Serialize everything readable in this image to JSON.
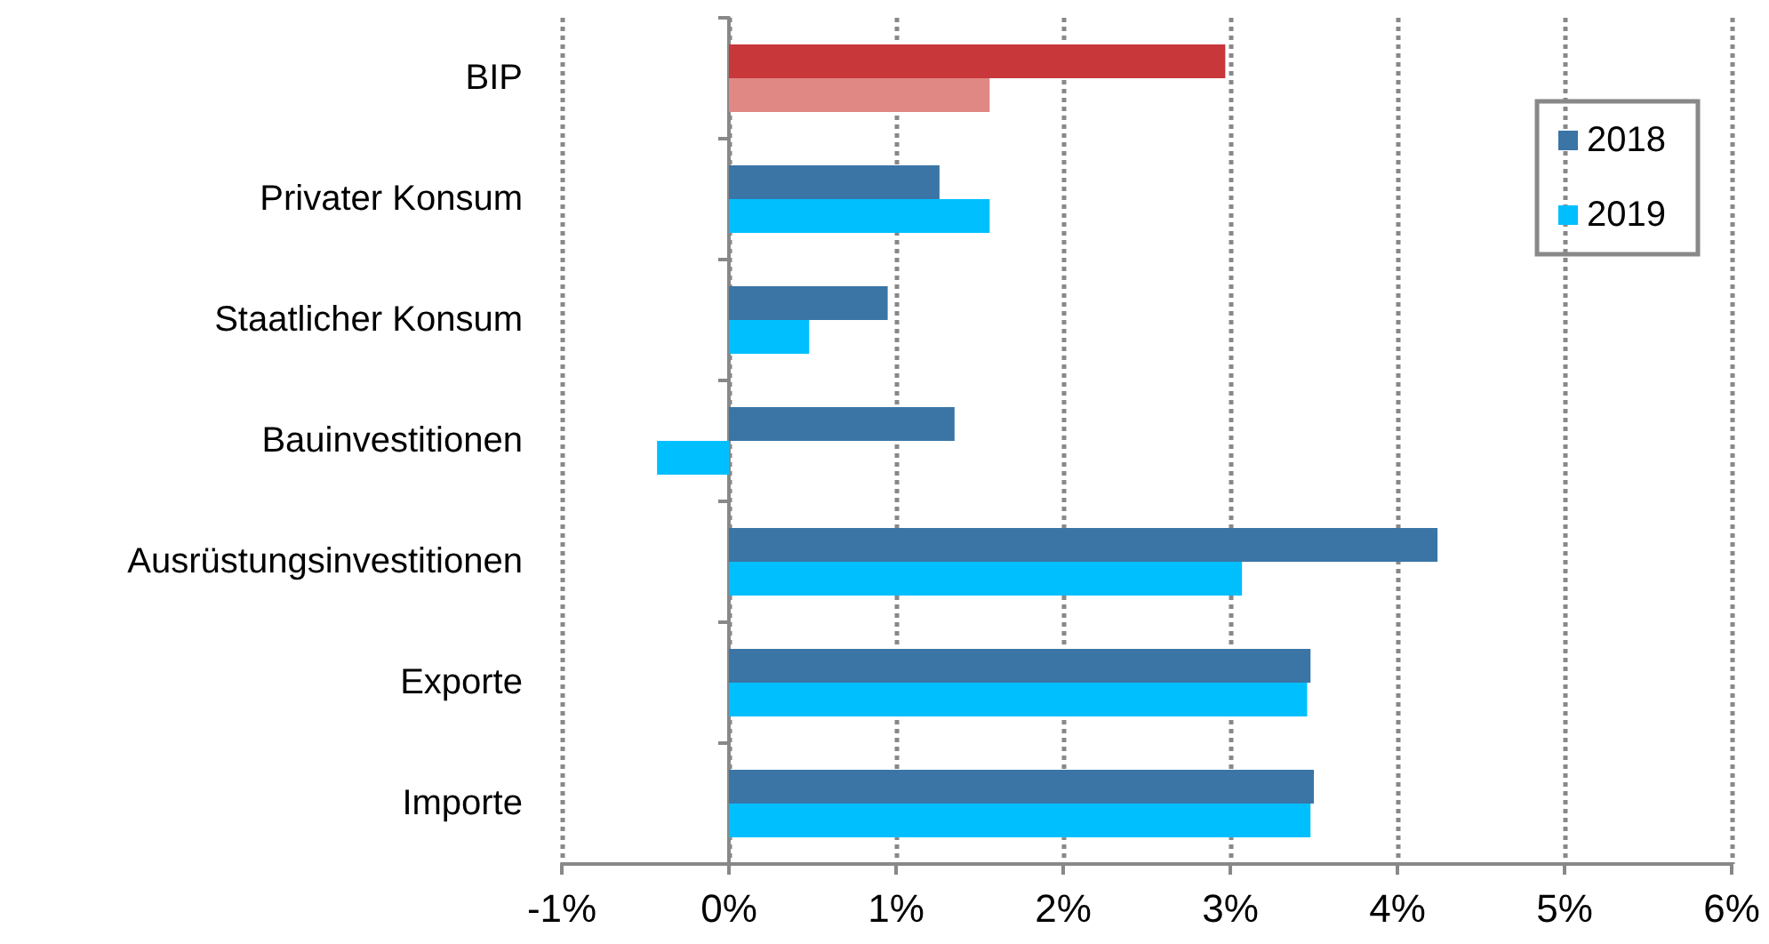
{
  "chart_data": {
    "type": "bar",
    "orientation": "horizontal",
    "categories": [
      "BIP",
      "Privater Konsum",
      "Staatlicher Konsum",
      "Bauinvestitionen",
      "Ausrüstungsinvestitionen",
      "Exporte",
      "Importe"
    ],
    "series": [
      {
        "name": "2018",
        "color": "#3a75a6",
        "colors": [
          "#c8373a",
          "#3a75a6",
          "#3a75a6",
          "#3a75a6",
          "#3a75a6",
          "#3a75a6",
          "#3a75a6"
        ],
        "values": [
          2.97,
          1.26,
          0.95,
          1.35,
          4.24,
          3.48,
          3.5
        ]
      },
      {
        "name": "2019",
        "color": "#00bfff",
        "colors": [
          "#df8884",
          "#00bfff",
          "#00bfff",
          "#00bfff",
          "#00bfff",
          "#00bfff",
          "#00bfff"
        ],
        "values": [
          1.56,
          1.56,
          0.48,
          -0.43,
          3.07,
          3.46,
          3.48
        ]
      }
    ],
    "xlim": [
      -1,
      6
    ],
    "xticks": [
      {
        "value": -1,
        "label": "-1%"
      },
      {
        "value": 0,
        "label": "0%"
      },
      {
        "value": 1,
        "label": "1%"
      },
      {
        "value": 2,
        "label": "2%"
      },
      {
        "value": 3,
        "label": "3%"
      },
      {
        "value": 4,
        "label": "4%"
      },
      {
        "value": 5,
        "label": "5%"
      },
      {
        "value": 6,
        "label": "6%"
      }
    ],
    "grid": "x",
    "legend": "top right"
  }
}
